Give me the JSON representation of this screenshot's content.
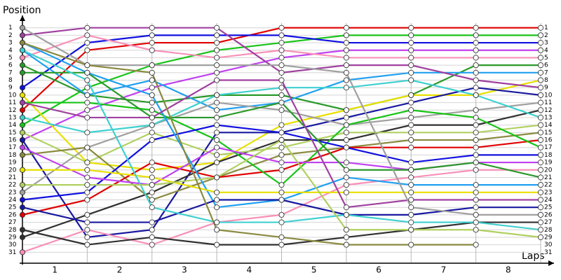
{
  "chart_data": {
    "type": "bump",
    "y_label": "Position",
    "x_label": "Laps",
    "x": [
      0,
      1,
      2,
      3,
      4,
      5,
      6,
      7,
      8
    ],
    "xlim": [
      0,
      8
    ],
    "xticks": [
      {
        "value": 0.5,
        "label": "1"
      },
      {
        "value": 1.5,
        "label": "2"
      },
      {
        "value": 2.5,
        "label": "3"
      },
      {
        "value": 3.5,
        "label": "4"
      },
      {
        "value": 4.5,
        "label": "5"
      },
      {
        "value": 5.5,
        "label": "6"
      },
      {
        "value": 6.5,
        "label": "7"
      },
      {
        "value": 7.5,
        "label": "8"
      }
    ],
    "ylim": [
      0,
      32
    ],
    "y_inverted": true,
    "yticks": [
      1,
      2,
      3,
      4,
      5,
      6,
      7,
      8,
      9,
      10,
      11,
      12,
      13,
      14,
      15,
      16,
      17,
      18,
      19,
      20,
      21,
      22,
      23,
      24,
      25,
      26,
      27,
      28,
      29,
      30,
      31
    ],
    "grid": true,
    "series": [
      {
        "color": "#e00000",
        "values": [
          12,
          4,
          3,
          3,
          1,
          1,
          1,
          1,
          1
        ]
      },
      {
        "color": "#18c418",
        "values": [
          14,
          9,
          6,
          4,
          3,
          2,
          2,
          2,
          2
        ]
      },
      {
        "color": "#1010e0",
        "values": [
          9,
          3,
          2,
          2,
          2,
          3,
          3,
          3,
          3
        ]
      },
      {
        "color": "#c040f0",
        "values": [
          16,
          12,
          9,
          7,
          5,
          4,
          4,
          4,
          4
        ]
      },
      {
        "color": "#f890b8",
        "values": [
          5,
          2,
          4,
          5,
          4,
          5,
          5,
          5,
          5
        ]
      },
      {
        "color": "#2a9a2a",
        "values": [
          6,
          10,
          11,
          10,
          10,
          12,
          10,
          6,
          6
        ]
      },
      {
        "color": "#20a0f0",
        "values": [
          4,
          10,
          8,
          12,
          11,
          8,
          7,
          7,
          7
        ]
      },
      {
        "color": "#e8e000",
        "values": [
          10,
          19,
          20,
          19,
          14,
          12,
          10,
          10,
          8
        ]
      },
      {
        "color": "#a040a0",
        "values": [
          2,
          1,
          1,
          1,
          7,
          6,
          6,
          8,
          9
        ]
      },
      {
        "color": "#1818a0",
        "values": [
          16,
          29,
          28,
          15,
          15,
          13,
          11,
          9,
          10
        ]
      },
      {
        "color": "#a0a0a0",
        "values": [
          23,
          17,
          14,
          11,
          12,
          14,
          13,
          12,
          11
        ]
      },
      {
        "color": "#303030",
        "values": [
          29,
          26,
          23,
          19,
          16,
          16,
          14,
          14,
          12
        ]
      },
      {
        "color": "#40d0d0",
        "values": [
          13,
          15,
          14,
          10,
          9,
          9,
          8,
          10,
          13
        ]
      },
      {
        "color": "#b0d060",
        "values": [
          15,
          19,
          15,
          18,
          17,
          15,
          15,
          15,
          14
        ]
      },
      {
        "color": "#8a8a40",
        "values": [
          18,
          17,
          24,
          21,
          18,
          17,
          16,
          16,
          15
        ]
      },
      {
        "color": "#e00000",
        "values": [
          26,
          24,
          19,
          21,
          20,
          17,
          17,
          17,
          16
        ]
      },
      {
        "color": "#18c418",
        "values": [
          11,
          11,
          12,
          16,
          22,
          14,
          12,
          13,
          17
        ]
      },
      {
        "color": "#1010e0",
        "values": [
          24,
          23,
          16,
          14,
          15,
          17,
          19,
          18,
          18
        ]
      },
      {
        "color": "#c040f0",
        "values": [
          17,
          21,
          22,
          17,
          19,
          19,
          20,
          19,
          19
        ]
      },
      {
        "color": "#f890b8",
        "values": [
          31,
          28,
          30,
          27,
          26,
          22,
          21,
          20,
          20
        ]
      },
      {
        "color": "#2a9a2a",
        "values": [
          7,
          7,
          13,
          13,
          11,
          20,
          20,
          19,
          21
        ]
      },
      {
        "color": "#20a0f0",
        "values": [
          3,
          7,
          10,
          25,
          24,
          21,
          22,
          22,
          22
        ]
      },
      {
        "color": "#e8e000",
        "values": [
          20,
          20,
          21,
          23,
          23,
          23,
          23,
          23,
          23
        ]
      },
      {
        "color": "#a040a0",
        "values": [
          11,
          13,
          13,
          8,
          8,
          25,
          24,
          24,
          24
        ]
      },
      {
        "color": "#1818a0",
        "values": [
          25,
          27,
          27,
          24,
          24,
          26,
          26,
          25,
          25
        ]
      },
      {
        "color": "#a0a0a0",
        "values": [
          1,
          6,
          6,
          6,
          6,
          7,
          25,
          26,
          26
        ]
      },
      {
        "color": "#303030",
        "values": [
          28,
          30,
          29,
          30,
          30,
          29,
          28,
          27,
          27
        ]
      },
      {
        "color": "#40d0d0",
        "values": [
          4,
          8,
          25,
          27,
          27,
          26,
          27,
          27,
          28
        ]
      },
      {
        "color": "#b0d060",
        "values": [
          22,
          22,
          22,
          21,
          16,
          28,
          28,
          28,
          29
        ]
      },
      {
        "color": "#8a8a40",
        "values": [
          3,
          6,
          7,
          28,
          29,
          30,
          30,
          30,
          null
        ]
      }
    ]
  }
}
